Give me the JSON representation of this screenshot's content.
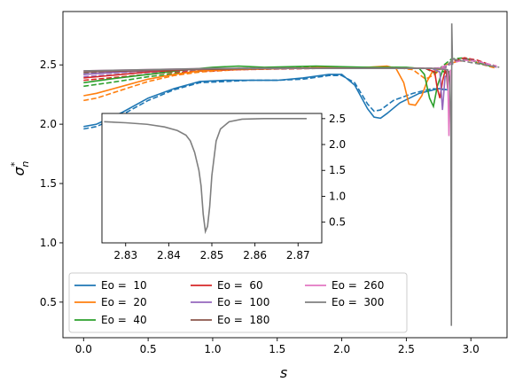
{
  "chart_data": {
    "type": "line",
    "xlabel": "s",
    "ylabel": "σ*n",
    "xlim": [
      -0.16,
      3.28
    ],
    "ylim": [
      0.2,
      2.95
    ],
    "xticks": [
      "0.0",
      "0.5",
      "1.0",
      "1.5",
      "2.0",
      "2.5",
      "3.0"
    ],
    "yticks": [
      "0.5",
      "1.0",
      "1.5",
      "2.0",
      "2.5"
    ],
    "legend_placement": "lower-left",
    "legend_columns": 3,
    "series": [
      {
        "name": "Eo =  10",
        "color": "#1f77b4",
        "x": [
          0,
          0.1,
          0.3,
          0.5,
          0.7,
          0.9,
          1.1,
          1.3,
          1.5,
          1.7,
          1.9,
          2.0,
          2.1,
          2.2,
          2.25,
          2.3,
          2.35,
          2.45,
          2.6,
          2.75,
          2.82
        ],
        "y": [
          1.98,
          2.0,
          2.1,
          2.22,
          2.3,
          2.36,
          2.37,
          2.37,
          2.37,
          2.39,
          2.42,
          2.42,
          2.33,
          2.13,
          2.06,
          2.05,
          2.09,
          2.18,
          2.26,
          2.3,
          2.29
        ]
      },
      {
        "name": "Eo =  20",
        "color": "#ff7f0e",
        "x": [
          0,
          0.1,
          0.3,
          0.5,
          0.7,
          0.9,
          1.1,
          1.5,
          2.0,
          2.2,
          2.35,
          2.42,
          2.48,
          2.52,
          2.57,
          2.62,
          2.66,
          2.7,
          2.76,
          2.82
        ],
        "y": [
          2.24,
          2.26,
          2.32,
          2.38,
          2.42,
          2.45,
          2.46,
          2.47,
          2.48,
          2.48,
          2.49,
          2.47,
          2.35,
          2.17,
          2.16,
          2.24,
          2.36,
          2.44,
          2.47,
          2.45
        ]
      },
      {
        "name": "Eo =  40",
        "color": "#2ca02c",
        "x": [
          0,
          0.2,
          0.5,
          0.8,
          1.0,
          1.2,
          1.4,
          1.8,
          2.2,
          2.5,
          2.6,
          2.64,
          2.68,
          2.71,
          2.74,
          2.78,
          2.82
        ],
        "y": [
          2.35,
          2.38,
          2.42,
          2.46,
          2.48,
          2.49,
          2.48,
          2.49,
          2.48,
          2.48,
          2.47,
          2.42,
          2.22,
          2.15,
          2.32,
          2.45,
          2.42
        ]
      },
      {
        "name": "Eo =  60",
        "color": "#d62728",
        "x": [
          0,
          0.2,
          0.5,
          0.8,
          1.2,
          1.8,
          2.4,
          2.65,
          2.72,
          2.74,
          2.76,
          2.78,
          2.8,
          2.82
        ],
        "y": [
          2.39,
          2.41,
          2.44,
          2.46,
          2.47,
          2.47,
          2.47,
          2.47,
          2.44,
          2.3,
          2.22,
          2.36,
          2.45,
          2.4
        ]
      },
      {
        "name": "Eo =  100",
        "color": "#9467bd",
        "x": [
          0,
          0.3,
          0.7,
          1.2,
          1.8,
          2.4,
          2.7,
          2.76,
          2.78,
          2.8,
          2.82
        ],
        "y": [
          2.42,
          2.44,
          2.46,
          2.47,
          2.47,
          2.47,
          2.47,
          2.44,
          2.12,
          2.4,
          2.42
        ]
      },
      {
        "name": "Eo =  180",
        "color": "#8c564b",
        "x": [
          0,
          0.4,
          0.8,
          1.5,
          2.2,
          2.7,
          2.8,
          2.81,
          2.82,
          2.83
        ],
        "y": [
          2.44,
          2.45,
          2.46,
          2.47,
          2.47,
          2.47,
          2.47,
          2.45,
          2.3,
          2.45
        ]
      },
      {
        "name": "Eo =  260",
        "color": "#e377c2",
        "x": [
          0,
          0.5,
          1.0,
          1.5,
          2.2,
          2.7,
          2.8,
          2.82,
          2.83,
          2.84
        ],
        "y": [
          2.45,
          2.46,
          2.47,
          2.47,
          2.47,
          2.47,
          2.47,
          2.45,
          1.9,
          2.46
        ]
      },
      {
        "name": "Eo =  300",
        "color": "#7f7f7f",
        "x": [
          0,
          0.5,
          1.0,
          1.5,
          2.2,
          2.7,
          2.82,
          2.835,
          2.845,
          2.849,
          2.852,
          2.858
        ],
        "y": [
          2.45,
          2.46,
          2.47,
          2.47,
          2.47,
          2.47,
          2.46,
          2.4,
          2.0,
          0.3,
          2.85,
          2.5
        ]
      }
    ],
    "dashed_series": [
      {
        "color": "#1f77b4",
        "x": [
          0,
          0.1,
          0.3,
          0.5,
          0.7,
          0.9,
          1.1,
          1.3,
          1.5,
          1.7,
          1.9,
          2.0,
          2.1,
          2.2,
          2.25,
          2.3,
          2.4,
          2.55,
          2.7,
          2.82
        ],
        "y": [
          1.96,
          1.98,
          2.08,
          2.2,
          2.29,
          2.35,
          2.36,
          2.37,
          2.37,
          2.38,
          2.41,
          2.41,
          2.35,
          2.17,
          2.11,
          2.12,
          2.2,
          2.26,
          2.3,
          2.29
        ]
      },
      {
        "color": "#ff7f0e",
        "x": [
          0,
          0.1,
          0.3,
          0.5,
          0.7,
          0.9,
          1.2,
          1.6,
          2.0,
          2.4,
          2.55,
          2.65,
          2.72,
          2.8,
          2.9,
          3.0,
          3.1,
          3.2
        ],
        "y": [
          2.2,
          2.22,
          2.29,
          2.36,
          2.41,
          2.44,
          2.46,
          2.47,
          2.48,
          2.48,
          2.46,
          2.38,
          2.42,
          2.5,
          2.53,
          2.54,
          2.5,
          2.47
        ]
      },
      {
        "color": "#2ca02c",
        "x": [
          0,
          0.2,
          0.5,
          0.8,
          1.2,
          1.8,
          2.4,
          2.65,
          2.72,
          2.78,
          2.85,
          2.95,
          3.05,
          3.15
        ],
        "y": [
          2.32,
          2.35,
          2.4,
          2.44,
          2.47,
          2.48,
          2.48,
          2.47,
          2.43,
          2.49,
          2.55,
          2.56,
          2.52,
          2.49
        ]
      },
      {
        "color": "#d62728",
        "x": [
          0,
          0.3,
          0.7,
          1.2,
          1.8,
          2.4,
          2.7,
          2.78,
          2.86,
          2.95,
          3.05,
          3.15
        ],
        "y": [
          2.37,
          2.4,
          2.44,
          2.46,
          2.47,
          2.47,
          2.47,
          2.47,
          2.53,
          2.56,
          2.54,
          2.5
        ]
      },
      {
        "color": "#9467bd",
        "x": [
          0,
          0.4,
          0.9,
          1.5,
          2.2,
          2.7,
          2.8,
          2.88,
          2.98,
          3.08,
          3.2
        ],
        "y": [
          2.4,
          2.43,
          2.46,
          2.47,
          2.47,
          2.47,
          2.48,
          2.53,
          2.55,
          2.52,
          2.48
        ]
      },
      {
        "color": "#8c564b",
        "x": [
          0,
          0.5,
          1.0,
          1.6,
          2.3,
          2.75,
          2.86,
          2.95,
          3.05,
          3.2
        ],
        "y": [
          2.42,
          2.45,
          2.46,
          2.47,
          2.47,
          2.47,
          2.52,
          2.55,
          2.53,
          2.49
        ]
      },
      {
        "color": "#e377c2",
        "x": [
          0,
          0.5,
          1.0,
          1.6,
          2.3,
          2.75,
          2.86,
          2.95,
          3.05,
          3.2
        ],
        "y": [
          2.43,
          2.45,
          2.46,
          2.47,
          2.47,
          2.47,
          2.52,
          2.54,
          2.53,
          2.49
        ]
      },
      {
        "color": "#7f7f7f",
        "x": [
          0,
          0.5,
          1.0,
          1.6,
          2.3,
          2.75,
          2.8,
          2.86,
          2.95,
          3.05,
          3.22
        ],
        "y": [
          2.43,
          2.45,
          2.46,
          2.47,
          2.47,
          2.47,
          2.47,
          2.55,
          2.53,
          2.51,
          2.48
        ]
      }
    ],
    "inset": {
      "type": "line",
      "color": "#7f7f7f",
      "xlim": [
        2.8245,
        2.8755
      ],
      "ylim": [
        0.1,
        2.6
      ],
      "xticks": [
        "2.83",
        "2.84",
        "2.85",
        "2.86",
        "2.87"
      ],
      "yticks": [
        "0.5",
        "1.0",
        "1.5",
        "2.0",
        "2.5"
      ],
      "x": [
        2.825,
        2.83,
        2.835,
        2.839,
        2.842,
        2.844,
        2.845,
        2.846,
        2.847,
        2.8475,
        2.848,
        2.8485,
        2.849,
        2.8495,
        2.85,
        2.851,
        2.852,
        2.854,
        2.857,
        2.862,
        2.872
      ],
      "y": [
        2.44,
        2.42,
        2.39,
        2.34,
        2.27,
        2.18,
        2.07,
        1.85,
        1.5,
        1.2,
        0.65,
        0.32,
        0.42,
        0.8,
        1.4,
        2.07,
        2.3,
        2.44,
        2.49,
        2.5,
        2.5
      ]
    }
  }
}
